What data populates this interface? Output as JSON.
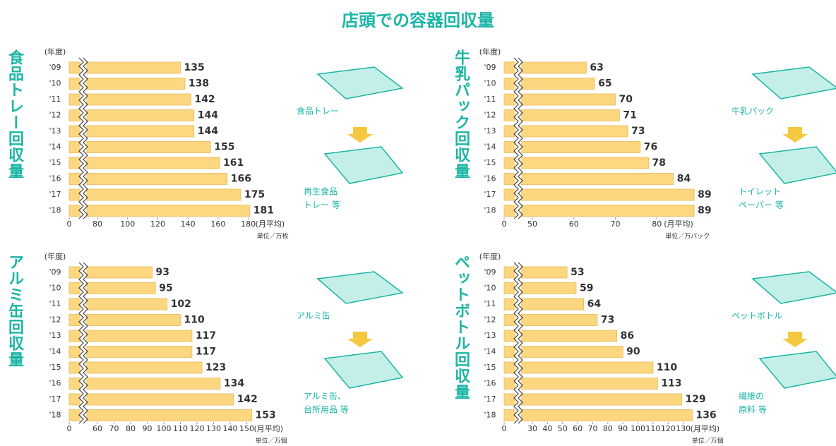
{
  "page_title": "店頭での容器回収量",
  "chart_data": [
    {
      "type": "bar",
      "orientation": "horizontal",
      "title": "食品トレー回収量",
      "category_axis_label": "(年度)",
      "categories": [
        "'09",
        "'10",
        "'11",
        "'12",
        "'13",
        "'14",
        "'15",
        "'16",
        "'17",
        "'18"
      ],
      "values": [
        135,
        138,
        142,
        144,
        144,
        155,
        161,
        166,
        175,
        181
      ],
      "color": "#fcd77f",
      "xlim": [
        0,
        190
      ],
      "xticks": [
        0,
        80,
        100,
        120,
        140,
        160,
        180
      ],
      "axis_break": true,
      "x_axis_note": "(月平均)",
      "unit": "単位／万枚",
      "annotation_from": "食品トレー",
      "annotation_to": [
        "再生食品",
        "トレー 等"
      ]
    },
    {
      "type": "bar",
      "orientation": "horizontal",
      "title": "牛乳パック回収量",
      "category_axis_label": "(年度)",
      "categories": [
        "'09",
        "'10",
        "'11",
        "'12",
        "'13",
        "'14",
        "'15",
        "'16",
        "'17",
        "'18"
      ],
      "values": [
        63,
        65,
        70,
        71,
        73,
        76,
        78,
        84,
        89,
        89
      ],
      "color": "#fcd77f",
      "xlim": [
        0,
        90
      ],
      "xticks": [
        0,
        50,
        60,
        70,
        80
      ],
      "axis_break": true,
      "x_axis_note": "(月平均)",
      "unit": "単位／万パック",
      "annotation_from": "牛乳パック",
      "annotation_to": [
        "トイレット",
        "ペーパー 等"
      ]
    },
    {
      "type": "bar",
      "orientation": "horizontal",
      "title": "アルミ缶回収量",
      "category_axis_label": "(年度)",
      "categories": [
        "'09",
        "'10",
        "'11",
        "'12",
        "'13",
        "'14",
        "'15",
        "'16",
        "'17",
        "'18"
      ],
      "values": [
        93,
        95,
        102,
        110,
        117,
        117,
        123,
        134,
        142,
        153
      ],
      "color": "#fcd77f",
      "xlim": [
        0,
        160
      ],
      "xticks": [
        0,
        60,
        70,
        80,
        90,
        100,
        110,
        120,
        130,
        140,
        150
      ],
      "axis_break": true,
      "x_axis_note": "(月平均)",
      "unit": "単位／万個",
      "annotation_from": "アルミ缶",
      "annotation_to": [
        "アルミ缶、",
        "台所用品 等"
      ]
    },
    {
      "type": "bar",
      "orientation": "horizontal",
      "title": "ペットボトル回収量",
      "category_axis_label": "(年度)",
      "categories": [
        "'09",
        "'10",
        "'11",
        "'12",
        "'13",
        "'14",
        "'15",
        "'16",
        "'17",
        "'18"
      ],
      "values": [
        53,
        59,
        64,
        73,
        86,
        90,
        110,
        113,
        129,
        136
      ],
      "color": "#fcd77f",
      "xlim": [
        0,
        140
      ],
      "xticks": [
        0,
        30,
        40,
        50,
        60,
        70,
        80,
        90,
        100,
        110,
        120,
        130
      ],
      "axis_break": true,
      "x_axis_note": "(月平均)",
      "unit": "単位／万個",
      "annotation_from": "ペットボトル",
      "annotation_to": [
        "繊維の",
        "原料 等"
      ]
    }
  ]
}
